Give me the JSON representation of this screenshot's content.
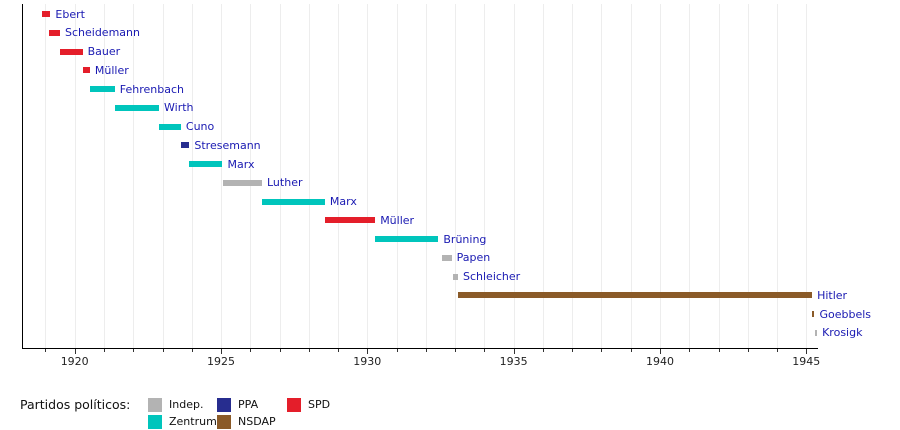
{
  "chart_data": {
    "type": "timeline",
    "title": "",
    "x_axis": {
      "min": 1918.2,
      "max": 1945.4,
      "minor_tick_interval": 1,
      "gridline_interval": 1,
      "labeled_ticks": [
        1920,
        1925,
        1930,
        1935,
        1940,
        1945
      ]
    },
    "parties": [
      {
        "id": "indep",
        "label": "Indep.",
        "color": "#b3b3b3"
      },
      {
        "id": "ppa",
        "label": "PPA",
        "color": "#272d8f"
      },
      {
        "id": "spd",
        "label": "SPD",
        "color": "#e41e2a"
      },
      {
        "id": "zentrum",
        "label": "Zentrum",
        "color": "#00c5bc"
      },
      {
        "id": "nsdap",
        "label": "NSDAP",
        "color": "#8a5a28"
      }
    ],
    "bars": [
      {
        "label": "Ebert",
        "party": "spd",
        "start": 1918.87,
        "end": 1919.17
      },
      {
        "label": "Scheidemann",
        "party": "spd",
        "start": 1919.13,
        "end": 1919.5
      },
      {
        "label": "Bauer",
        "party": "spd",
        "start": 1919.48,
        "end": 1920.27
      },
      {
        "label": "Müller",
        "party": "spd",
        "start": 1920.27,
        "end": 1920.52
      },
      {
        "label": "Fehrenbach",
        "party": "zentrum",
        "start": 1920.52,
        "end": 1921.37
      },
      {
        "label": "Wirth",
        "party": "zentrum",
        "start": 1921.37,
        "end": 1922.88
      },
      {
        "label": "Cuno",
        "party": "zentrum",
        "start": 1922.88,
        "end": 1923.63
      },
      {
        "label": "Stresemann",
        "party": "ppa",
        "start": 1923.63,
        "end": 1923.92
      },
      {
        "label": "Marx",
        "party": "zentrum",
        "start": 1923.92,
        "end": 1925.05
      },
      {
        "label": "Luther",
        "party": "indep",
        "start": 1925.05,
        "end": 1926.4
      },
      {
        "label": "Marx",
        "party": "zentrum",
        "start": 1926.4,
        "end": 1928.55
      },
      {
        "label": "Müller",
        "party": "spd",
        "start": 1928.55,
        "end": 1930.27
      },
      {
        "label": "Brüning",
        "party": "zentrum",
        "start": 1930.27,
        "end": 1932.43
      },
      {
        "label": "Papen",
        "party": "indep",
        "start": 1932.54,
        "end": 1932.88
      },
      {
        "label": "Schleicher",
        "party": "indep",
        "start": 1932.94,
        "end": 1933.1
      },
      {
        "label": "Hitler",
        "party": "nsdap",
        "start": 1933.1,
        "end": 1945.2
      },
      {
        "label": "Goebbels",
        "party": "nsdap",
        "start": 1945.2,
        "end": 1945.28
      },
      {
        "label": "Krosigk",
        "party": "indep",
        "start": 1945.29,
        "end": 1945.37
      }
    ],
    "legend": {
      "title": "Partidos políticos:",
      "rows": [
        [
          "indep",
          "ppa",
          "spd"
        ],
        [
          "zentrum",
          "nsdap"
        ]
      ]
    },
    "colors": {
      "bar_label_text": "#1a1ab2",
      "axis": "#000000",
      "gridline": "#ededed",
      "tick_label": "#222222",
      "background": "#ffffff"
    }
  }
}
